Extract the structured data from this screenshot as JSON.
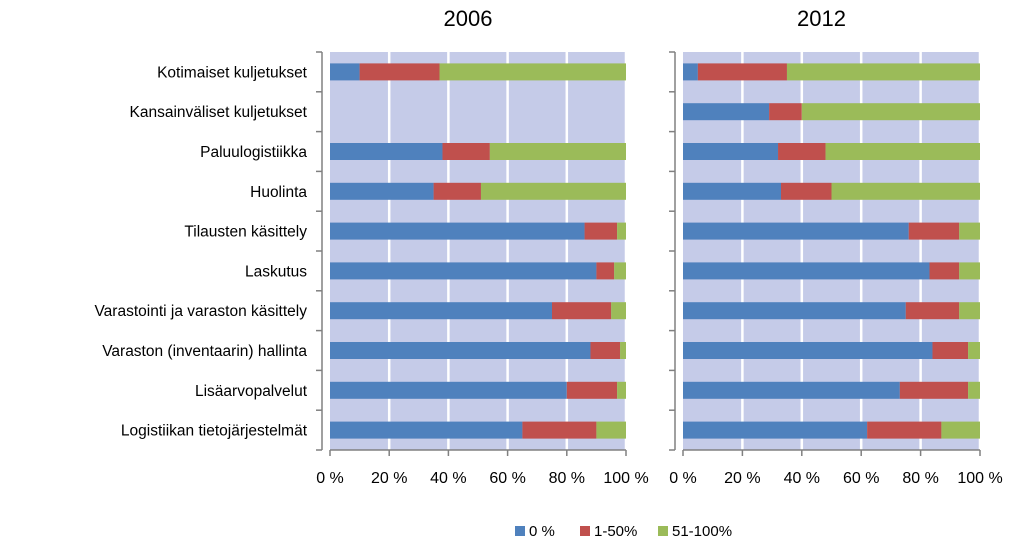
{
  "chart_data": {
    "type": "bar",
    "orientation": "horizontal",
    "stacked": "percent",
    "categories": [
      "Kotimaiset kuljetukset",
      "Kansainväliset kuljetukset",
      "Paluulogistiikka",
      "Huolinta",
      "Tilausten käsittely",
      "Laskutus",
      "Varastointi ja varaston käsittely",
      "Varaston (inventaarin) hallinta",
      "Lisäarvopalvelut",
      "Logistiikan tietojärjestelmät"
    ],
    "x_ticks": [
      "0 %",
      "20 %",
      "40 %",
      "60 %",
      "80 %",
      "100 %"
    ],
    "xlim": [
      0,
      100
    ],
    "grid": "vertical",
    "legend": {
      "position": "bottom",
      "entries": [
        "0 %",
        "1-50%",
        "51-100%"
      ]
    },
    "colors": {
      "0 %": "#4f81bd",
      "1-50%": "#c0504d",
      "51-100%": "#9bbb59",
      "plot_background": "#c5cbe8",
      "gridline": "#ffffff"
    },
    "panels": [
      {
        "title": "2006",
        "series": [
          {
            "name": "0 %",
            "values": [
              10,
              0,
              38,
              35,
              86,
              90,
              75,
              88,
              80,
              65
            ]
          },
          {
            "name": "1-50%",
            "values": [
              27,
              0,
              16,
              16,
              11,
              6,
              20,
              10,
              17,
              25
            ]
          },
          {
            "name": "51-100%",
            "values": [
              63,
              0,
              46,
              49,
              3,
              4,
              5,
              2,
              3,
              10
            ]
          }
        ]
      },
      {
        "title": "2012",
        "series": [
          {
            "name": "0 %",
            "values": [
              5,
              29,
              32,
              33,
              76,
              83,
              75,
              84,
              73,
              62
            ]
          },
          {
            "name": "1-50%",
            "values": [
              30,
              11,
              16,
              17,
              17,
              10,
              18,
              12,
              23,
              25
            ]
          },
          {
            "name": "51-100%",
            "values": [
              65,
              60,
              52,
              50,
              7,
              7,
              7,
              4,
              4,
              13
            ]
          }
        ]
      }
    ]
  }
}
